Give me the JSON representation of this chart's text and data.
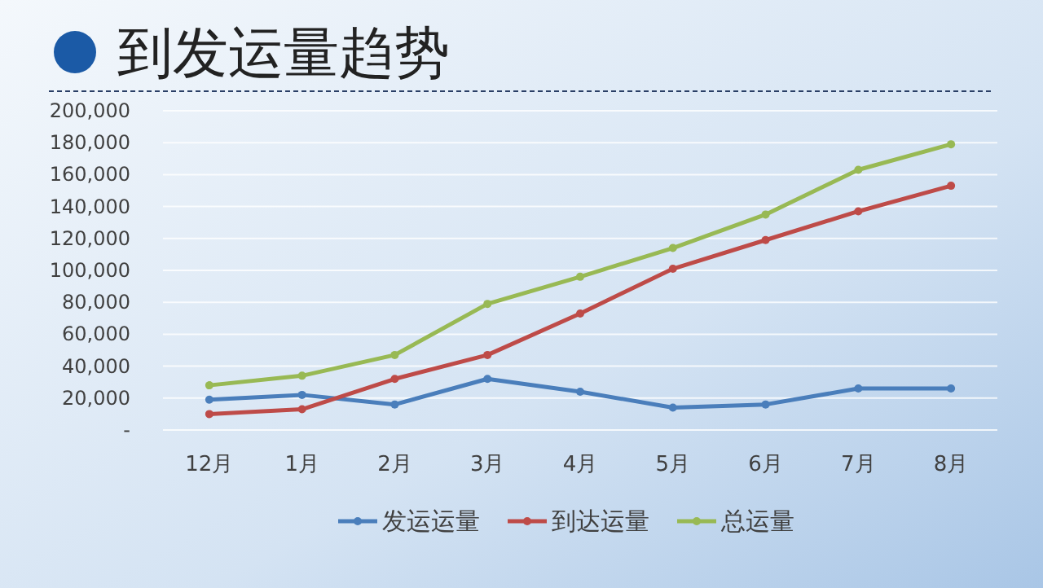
{
  "chart_data": {
    "type": "line",
    "title": "到发运量趋势",
    "categories": [
      "12月",
      "1月",
      "2月",
      "3月",
      "4月",
      "5月",
      "6月",
      "7月",
      "8月"
    ],
    "series": [
      {
        "name": "发运运量",
        "color": "#4a7ebb",
        "values": [
          19000,
          22000,
          16000,
          32000,
          24000,
          14000,
          16000,
          26000,
          26000
        ]
      },
      {
        "name": "到达运量",
        "color": "#be4b48",
        "values": [
          10000,
          13000,
          32000,
          47000,
          73000,
          101000,
          119000,
          137000,
          153000
        ]
      },
      {
        "name": "总运量",
        "color": "#98b954",
        "values": [
          28000,
          34000,
          47000,
          79000,
          96000,
          114000,
          135000,
          163000,
          179000
        ]
      }
    ],
    "ylim": [
      0,
      200000
    ],
    "yticks": [
      {
        "value": 0,
        "label": "-"
      },
      {
        "value": 20000,
        "label": "20,000"
      },
      {
        "value": 40000,
        "label": "40,000"
      },
      {
        "value": 60000,
        "label": "60,000"
      },
      {
        "value": 80000,
        "label": "80,000"
      },
      {
        "value": 100000,
        "label": "100,000"
      },
      {
        "value": 120000,
        "label": "120,000"
      },
      {
        "value": 140000,
        "label": "140,000"
      },
      {
        "value": 160000,
        "label": "160,000"
      },
      {
        "value": 180000,
        "label": "180,000"
      },
      {
        "value": 200000,
        "label": "200,000"
      }
    ],
    "grid": "y",
    "legend": "bottom",
    "marker": "circle",
    "line_style": "solid"
  }
}
